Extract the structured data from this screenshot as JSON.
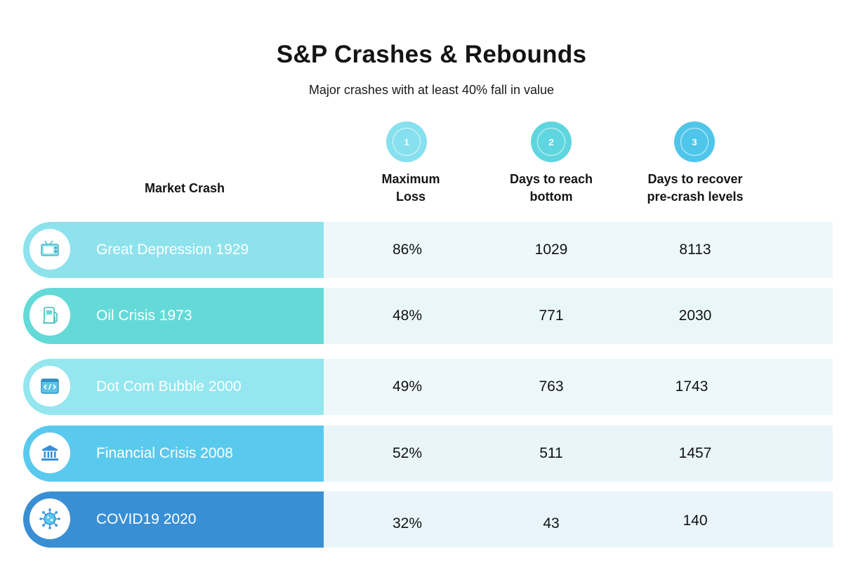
{
  "title": "S&P Crashes & Rebounds",
  "subtitle": "Major crashes with at least 40% fall in value",
  "columns": {
    "market_crash": "Market Crash",
    "maximum_loss": [
      "Maximum",
      "Loss"
    ],
    "days_to_bottom": [
      "Days to reach",
      "bottom"
    ],
    "days_to_recover": [
      "Days to recover",
      "pre-crash levels"
    ]
  },
  "steps": [
    {
      "number": "1",
      "color": "#86e0ed"
    },
    {
      "number": "2",
      "color": "#5fd6df"
    },
    {
      "number": "3",
      "color": "#4fc6e9"
    }
  ],
  "rows": [
    {
      "crash": "Great Depression 1929",
      "icon": "tv-icon",
      "band_color": "#8ee2ec",
      "value_bg": "#eef8fb",
      "loss": "86%",
      "bottom": "1029",
      "recover": "8113"
    },
    {
      "crash": "Oil Crisis 1973",
      "icon": "fuel-pump-icon",
      "band_color": "#64dad8",
      "value_bg": "#eaf7f8",
      "loss": "48%",
      "bottom": "771",
      "recover": "2030"
    },
    {
      "crash": "Dot Com Bubble 2000",
      "icon": "code-window-icon",
      "band_color": "#94e6ef",
      "value_bg": "#eef8fb",
      "loss": "49%",
      "bottom": "763",
      "recover": "1743"
    },
    {
      "crash": "Financial Crisis 2008",
      "icon": "bank-icon",
      "band_color": "#5ac9ee",
      "value_bg": "#eaf5fa",
      "loss": "52%",
      "bottom": "511",
      "recover": "1457"
    },
    {
      "crash": "COVID19 2020",
      "icon": "virus-icon",
      "band_color": "#3a8fd4",
      "value_bg": "#e9f5fb",
      "loss": "32%",
      "bottom": "43",
      "recover": "140"
    }
  ],
  "chart_data": {
    "type": "table",
    "title": "S&P Crashes & Rebounds",
    "subtitle": "Major crashes with at least 40% fall in value",
    "headers": [
      "Market Crash",
      "Maximum Loss",
      "Days to reach bottom",
      "Days to recover pre-crash levels"
    ],
    "rows": [
      [
        "Great Depression 1929",
        "86%",
        1029,
        8113
      ],
      [
        "Oil Crisis 1973",
        "48%",
        771,
        2030
      ],
      [
        "Dot Com Bubble 2000",
        "49%",
        763,
        1743
      ],
      [
        "Financial Crisis 2008",
        "52%",
        511,
        1457
      ],
      [
        "COVID19 2020",
        "32%",
        43,
        140
      ]
    ]
  }
}
